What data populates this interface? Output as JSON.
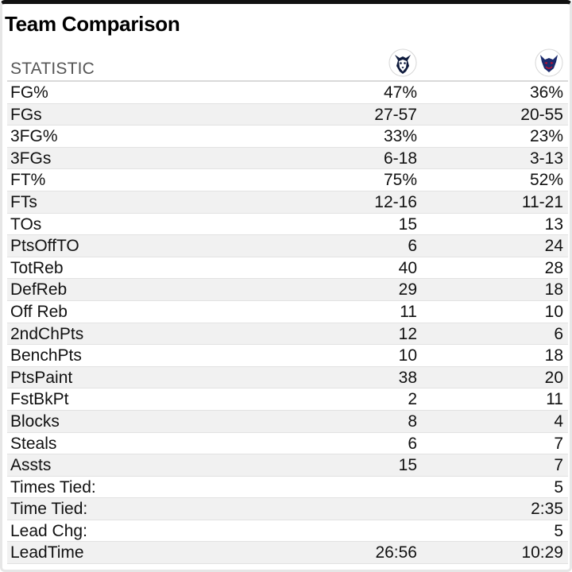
{
  "title": "Team Comparison",
  "header": {
    "label": "STATISTIC",
    "home_logo": "husky-logo-icon",
    "away_logo": "blue-demon-logo-icon"
  },
  "colors": {
    "row_alt": "#f1f1f1",
    "border_top": "#111111",
    "home_navy": "#0e1a3c",
    "away_navy": "#1a2a6c",
    "away_red": "#c8102e"
  },
  "rows": [
    {
      "stat": "FG%",
      "home": "47%",
      "away": "36%"
    },
    {
      "stat": "FGs",
      "home": "27-57",
      "away": "20-55"
    },
    {
      "stat": "3FG%",
      "home": "33%",
      "away": "23%"
    },
    {
      "stat": "3FGs",
      "home": "6-18",
      "away": "3-13"
    },
    {
      "stat": "FT%",
      "home": "75%",
      "away": "52%"
    },
    {
      "stat": "FTs",
      "home": "12-16",
      "away": "11-21"
    },
    {
      "stat": "TOs",
      "home": "15",
      "away": "13"
    },
    {
      "stat": "PtsOffTO",
      "home": "6",
      "away": "24"
    },
    {
      "stat": "TotReb",
      "home": "40",
      "away": "28"
    },
    {
      "stat": "DefReb",
      "home": "29",
      "away": "18"
    },
    {
      "stat": "Off Reb",
      "home": "11",
      "away": "10"
    },
    {
      "stat": "2ndChPts",
      "home": "12",
      "away": "6"
    },
    {
      "stat": "BenchPts",
      "home": "10",
      "away": "18"
    },
    {
      "stat": "PtsPaint",
      "home": "38",
      "away": "20"
    },
    {
      "stat": "FstBkPt",
      "home": "2",
      "away": "11"
    },
    {
      "stat": "Blocks",
      "home": "8",
      "away": "4"
    },
    {
      "stat": "Steals",
      "home": "6",
      "away": "7"
    },
    {
      "stat": "Assts",
      "home": "15",
      "away": "7"
    },
    {
      "stat": "Times Tied:",
      "home": "",
      "away": "5"
    },
    {
      "stat": "Time Tied:",
      "home": "",
      "away": "2:35"
    },
    {
      "stat": "Lead Chg:",
      "home": "",
      "away": "5"
    },
    {
      "stat": "LeadTime",
      "home": "26:56",
      "away": "10:29"
    }
  ]
}
